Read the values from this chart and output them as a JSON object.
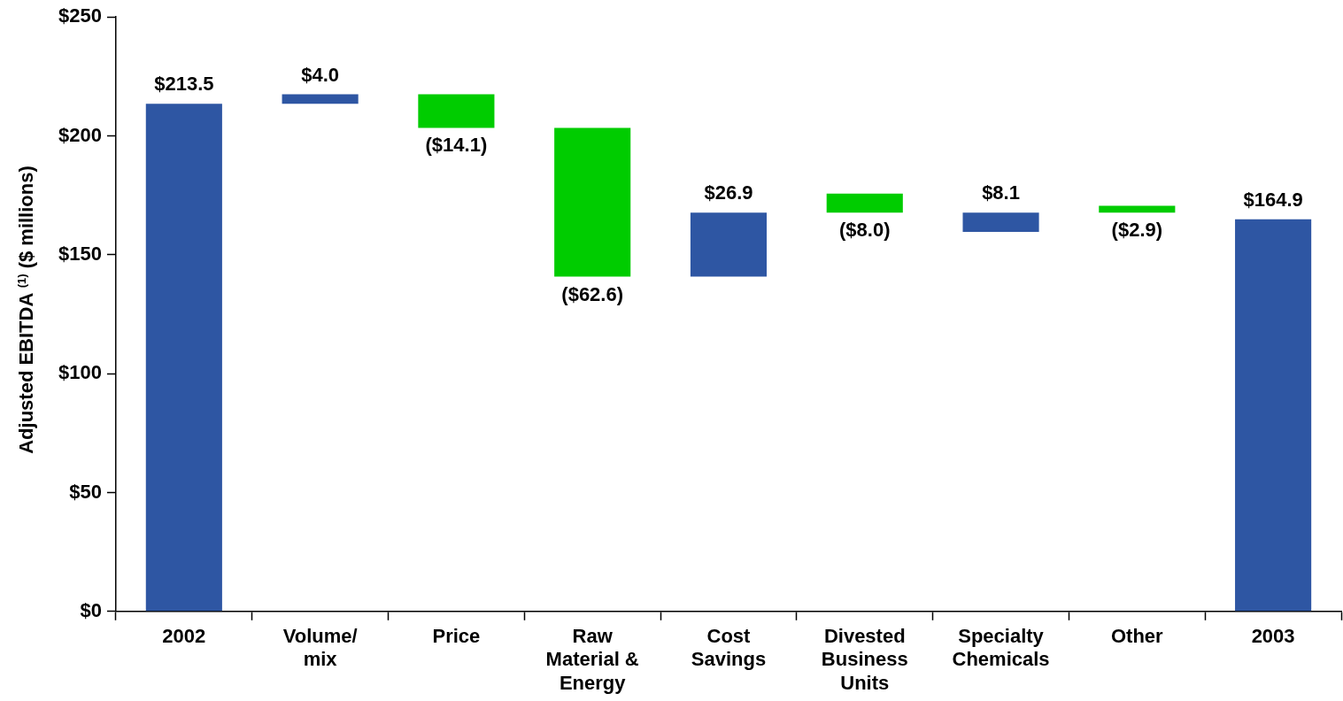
{
  "chart_data": {
    "type": "bar",
    "ylabel": "Adjusted EBITDA $^{(1)}$ ($ millions)",
    "categories": [
      "2002",
      "Volume/ mix",
      "Price",
      "Raw Material & Energy",
      "Cost Savings",
      "Divested Business Units",
      "Specialty Chemicals",
      "Other",
      "2003"
    ],
    "values": [
      213.5,
      4.0,
      -14.1,
      -62.6,
      26.9,
      -8.0,
      8.1,
      -2.9,
      164.9
    ],
    "base": [
      0,
      213.5,
      217.5,
      203.4,
      140.8,
      175.7,
      159.6,
      170.6,
      0
    ],
    "colors": [
      "#2e56a3",
      "#2e56a3",
      "#00cc00",
      "#00cc00",
      "#2e56a3",
      "#00cc00",
      "#2e56a3",
      "#00cc00",
      "#2e56a3"
    ],
    "value_labels": [
      "$213.5",
      "$4.0",
      "($14.1)",
      "($62.6)",
      "$26.9",
      "($8.0)",
      "$8.1",
      "($2.9)",
      "$164.9"
    ],
    "ylim": [
      0,
      250
    ],
    "yticks": [
      {
        "value": 0,
        "label": "$0"
      },
      {
        "value": 50,
        "label": "$50"
      },
      {
        "value": 100,
        "label": "$100"
      },
      {
        "value": 150,
        "label": "$150"
      },
      {
        "value": 200,
        "label": "$200"
      },
      {
        "value": 250,
        "label": "$250"
      }
    ],
    "grid": false,
    "legend": false
  }
}
